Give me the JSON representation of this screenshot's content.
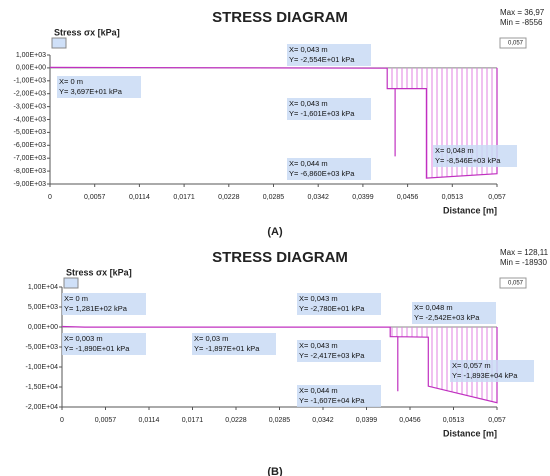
{
  "chart_data": [
    {
      "type": "line",
      "title": "STRESS DIAGRAM",
      "y_label": "Stress σx [kPa]",
      "x_label": "Distance [m]",
      "max_label": "Max = 36,97",
      "min_label": "Min = -8556",
      "range_label": "0,057",
      "caption": "(A)",
      "xlim": [
        0,
        0.057
      ],
      "ylim": [
        -9000,
        1000
      ],
      "xticks": [
        0,
        {
          "value": 0.0057,
          "label": "0,0057"
        },
        {
          "value": 0.0114,
          "label": "0,0114"
        },
        {
          "value": 0.0171,
          "label": "0,0171"
        },
        {
          "value": 0.0228,
          "label": "0,0228"
        },
        {
          "value": 0.0285,
          "label": "0,0285"
        },
        {
          "value": 0.0342,
          "label": "0,0342"
        },
        {
          "value": 0.0399,
          "label": "0,0399"
        },
        {
          "value": 0.0456,
          "label": "0,0456"
        },
        {
          "value": 0.0513,
          "label": "0,0513"
        },
        {
          "value": 0.057,
          "label": "0,057"
        }
      ],
      "yticks": [
        {
          "value": 1000,
          "label": "1,00E+03"
        },
        {
          "value": 0,
          "label": "0,00E+00"
        },
        {
          "value": -1000,
          "label": "-1,00E+03"
        },
        {
          "value": -2000,
          "label": "-2,00E+03"
        },
        {
          "value": -3000,
          "label": "-3,00E+03"
        },
        {
          "value": -4000,
          "label": "-4,00E+03"
        },
        {
          "value": -5000,
          "label": "-5,00E+03"
        },
        {
          "value": -6000,
          "label": "-6,00E+03"
        },
        {
          "value": -7000,
          "label": "-7,00E+03"
        },
        {
          "value": -8000,
          "label": "-8,00E+03"
        },
        {
          "value": -9000,
          "label": "-9,00E+03"
        }
      ],
      "series": [
        {
          "color": "#c030c0",
          "x": [
            0,
            0.043,
            0.043,
            0.044,
            0.044,
            0.044,
            0.048,
            0.048,
            0.057,
            0.057
          ],
          "values": [
            36.97,
            -25.54,
            -1601,
            -1601,
            -6860,
            -1601,
            -1601,
            -8546,
            -8200,
            0
          ]
        }
      ],
      "annotations": [
        [
          "X= 0 m",
          "Y= 3,697E+01 kPa"
        ],
        [
          "X= 0,043 m",
          "Y= -2,554E+01 kPa"
        ],
        [
          "X= 0,043 m",
          "Y= -1,601E+03 kPa"
        ],
        [
          "X= 0,044 m",
          "Y= -6,860E+03 kPa"
        ],
        [
          "X= 0,048 m",
          "Y= -8,546E+03 kPa"
        ]
      ]
    },
    {
      "type": "line",
      "title": "STRESS DIAGRAM",
      "y_label": "Stress σx [kPa]",
      "x_label": "Distance [m]",
      "max_label": "Max = 128,11",
      "min_label": "Min = -18930",
      "range_label": "0,057",
      "caption": "(B)",
      "xlim": [
        0,
        0.057
      ],
      "ylim": [
        -20000,
        10000
      ],
      "xticks": [
        0,
        {
          "value": 0.0057,
          "label": "0,0057"
        },
        {
          "value": 0.0114,
          "label": "0,0114"
        },
        {
          "value": 0.0171,
          "label": "0,0171"
        },
        {
          "value": 0.0228,
          "label": "0,0228"
        },
        {
          "value": 0.0285,
          "label": "0,0285"
        },
        {
          "value": 0.0342,
          "label": "0,0342"
        },
        {
          "value": 0.0399,
          "label": "0,0399"
        },
        {
          "value": 0.0456,
          "label": "0,0456"
        },
        {
          "value": 0.0513,
          "label": "0,0513"
        },
        {
          "value": 0.057,
          "label": "0,057"
        }
      ],
      "yticks": [
        {
          "value": 10000,
          "label": "1,00E+04"
        },
        {
          "value": 5000,
          "label": "5,00E+03"
        },
        {
          "value": 0,
          "label": "0,00E+00"
        },
        {
          "value": -5000,
          "label": "-5,00E+03"
        },
        {
          "value": -10000,
          "label": "-1,00E+04"
        },
        {
          "value": -15000,
          "label": "-1,50E+04"
        },
        {
          "value": -20000,
          "label": "-2,00E+04"
        }
      ],
      "series": [
        {
          "color": "#c030c0",
          "x": [
            0,
            0.003,
            0.03,
            0.043,
            0.043,
            0.044,
            0.044,
            0.044,
            0.048,
            0.048,
            0.057,
            0.057
          ],
          "values": [
            128.1,
            -18.9,
            -18.97,
            -27.8,
            -2417,
            -2417,
            -16070,
            -2417,
            -2542,
            -14800,
            -18930,
            0
          ]
        }
      ],
      "annotations": [
        [
          "X= 0 m",
          "Y= 1,281E+02 kPa"
        ],
        [
          "X= 0,003 m",
          "Y= -1,890E+01 kPa"
        ],
        [
          "X= 0,03 m",
          "Y= -1,897E+01 kPa"
        ],
        [
          "X= 0,043 m",
          "Y= -2,780E+01 kPa"
        ],
        [
          "X= 0,043 m",
          "Y= -2,417E+03 kPa"
        ],
        [
          "X= 0,048 m",
          "Y= -2,542E+03 kPa"
        ],
        [
          "X= 0,057 m",
          "Y= -1,893E+04 kPa"
        ],
        [
          "X= 0,044 m",
          "Y= -1,607E+04 kPa"
        ]
      ]
    }
  ]
}
